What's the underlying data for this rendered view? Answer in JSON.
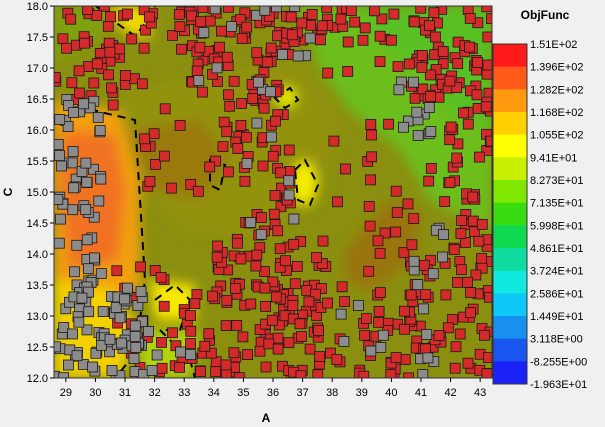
{
  "chart_data": {
    "type": "heatmap",
    "title": "",
    "xlabel": "A",
    "ylabel": "C",
    "xlim": [
      28.6,
      43.4
    ],
    "ylim": [
      12.0,
      18.0
    ],
    "x_ticks": [
      "29",
      "30",
      "31",
      "32",
      "33",
      "34",
      "35",
      "36",
      "37",
      "38",
      "39",
      "40",
      "41",
      "42",
      "43"
    ],
    "y_ticks": [
      "12.0",
      "12.5",
      "13.0",
      "13.5",
      "14.0",
      "14.5",
      "15.0",
      "15.5",
      "16.0",
      "16.5",
      "17.0",
      "17.5",
      "18.0"
    ],
    "grid": false,
    "legend_position": "right",
    "legend": {
      "title": "ObjFunc",
      "entries": [
        {
          "label": "1.51E+02",
          "color": "#ff1a1a"
        },
        {
          "label": "1.396E+02",
          "color": "#ff5a1a"
        },
        {
          "label": "1.282E+02",
          "color": "#ff9a10"
        },
        {
          "label": "1.168E+02",
          "color": "#ffd000"
        },
        {
          "label": "1.055E+02",
          "color": "#ffff00"
        },
        {
          "label": "9.41E+01",
          "color": "#c8f000"
        },
        {
          "label": "8.273E+01",
          "color": "#80e800"
        },
        {
          "label": "7.135E+01",
          "color": "#38dc10"
        },
        {
          "label": "5.998E+01",
          "color": "#10d850"
        },
        {
          "label": "4.861E+01",
          "color": "#10dca0"
        },
        {
          "label": "3.724E+01",
          "color": "#10e8e0"
        },
        {
          "label": "2.586E+01",
          "color": "#10c8f8"
        },
        {
          "label": "1.449E+01",
          "color": "#1890f0"
        },
        {
          "label": "3.118E+00",
          "color": "#1a55f0"
        },
        {
          "label": "-8.255E+00",
          "color": "#1a22f8"
        },
        {
          "label": "-1.963E+01",
          "color": "#0000ff"
        }
      ]
    },
    "point_colors": {
      "feasible": "#d42a2a",
      "infeasible": "#8c8c8c"
    },
    "clusters": [
      {
        "status": "feasible",
        "x": [
          28.6,
          31.3
        ],
        "y": [
          17.0,
          18.0
        ],
        "count": 30
      },
      {
        "status": "feasible",
        "x": [
          28.6,
          31.6
        ],
        "y": [
          16.4,
          17.1
        ],
        "count": 18
      },
      {
        "status": "feasible",
        "x": [
          31.6,
          32.1
        ],
        "y": [
          17.1,
          18.0
        ],
        "count": 6
      },
      {
        "status": "feasible",
        "x": [
          32.6,
          33.6
        ],
        "y": [
          17.3,
          18.0
        ],
        "count": 10
      },
      {
        "status": "feasible",
        "x": [
          33.1,
          34.6
        ],
        "y": [
          16.6,
          18.0
        ],
        "count": 30
      },
      {
        "status": "feasible",
        "x": [
          34.4,
          36.6
        ],
        "y": [
          15.6,
          18.0
        ],
        "count": 60
      },
      {
        "status": "feasible",
        "x": [
          35.0,
          36.6
        ],
        "y": [
          14.3,
          15.6
        ],
        "count": 25
      },
      {
        "status": "feasible",
        "x": [
          36.4,
          40.4
        ],
        "y": [
          17.4,
          18.0
        ],
        "count": 35
      },
      {
        "status": "feasible",
        "x": [
          40.6,
          41.8
        ],
        "y": [
          16.5,
          18.0
        ],
        "count": 40
      },
      {
        "status": "feasible",
        "x": [
          41.8,
          43.4
        ],
        "y": [
          12.0,
          18.0
        ],
        "count": 110
      },
      {
        "status": "feasible",
        "x": [
          40.6,
          41.8
        ],
        "y": [
          12.4,
          14.0
        ],
        "count": 20
      },
      {
        "status": "feasible",
        "x": [
          38.9,
          41.2
        ],
        "y": [
          12.0,
          13.2
        ],
        "count": 30
      },
      {
        "status": "feasible",
        "x": [
          34.0,
          37.8
        ],
        "y": [
          12.0,
          14.3
        ],
        "count": 110
      },
      {
        "status": "feasible",
        "x": [
          32.6,
          34.0
        ],
        "y": [
          12.0,
          13.4
        ],
        "count": 22
      },
      {
        "status": "feasible",
        "x": [
          30.4,
          32.4
        ],
        "y": [
          12.0,
          14.0
        ],
        "count": 20
      },
      {
        "status": "feasible",
        "x": [
          31.6,
          34.6
        ],
        "y": [
          15.0,
          16.4
        ],
        "count": 20
      },
      {
        "status": "feasible",
        "x": [
          37.6,
          40.8
        ],
        "y": [
          14.0,
          17.2
        ],
        "count": 18
      },
      {
        "status": "feasible",
        "x": [
          36.6,
          38.6
        ],
        "y": [
          12.0,
          13.6
        ],
        "count": 18
      },
      {
        "status": "feasible",
        "x": [
          39.2,
          41.5
        ],
        "y": [
          13.3,
          15.7
        ],
        "count": 14
      },
      {
        "status": "infeasible",
        "x": [
          28.6,
          30.2
        ],
        "y": [
          14.5,
          16.5
        ],
        "count": 40
      },
      {
        "status": "infeasible",
        "x": [
          28.6,
          30.2
        ],
        "y": [
          13.5,
          14.6
        ],
        "count": 14
      },
      {
        "status": "infeasible",
        "x": [
          28.6,
          31.6
        ],
        "y": [
          12.0,
          13.6
        ],
        "count": 75
      },
      {
        "status": "infeasible",
        "x": [
          31.0,
          33.5
        ],
        "y": [
          12.0,
          13.0
        ],
        "count": 10
      },
      {
        "status": "infeasible",
        "x": [
          40.2,
          41.4
        ],
        "y": [
          15.9,
          16.9
        ],
        "count": 12
      },
      {
        "status": "infeasible",
        "x": [
          33.0,
          36.8
        ],
        "y": [
          16.6,
          18.0
        ],
        "count": 12
      },
      {
        "status": "infeasible",
        "x": [
          36.6,
          37.4
        ],
        "y": [
          16.5,
          18.0
        ],
        "count": 4
      },
      {
        "status": "infeasible",
        "x": [
          40.7,
          41.8
        ],
        "y": [
          12.0,
          14.5
        ],
        "count": 14
      },
      {
        "status": "infeasible",
        "x": [
          38.0,
          40.0
        ],
        "y": [
          12.4,
          13.2
        ],
        "count": 6
      },
      {
        "status": "infeasible",
        "x": [
          34.8,
          37.2
        ],
        "y": [
          14.3,
          16.2
        ],
        "count": 8
      }
    ]
  }
}
